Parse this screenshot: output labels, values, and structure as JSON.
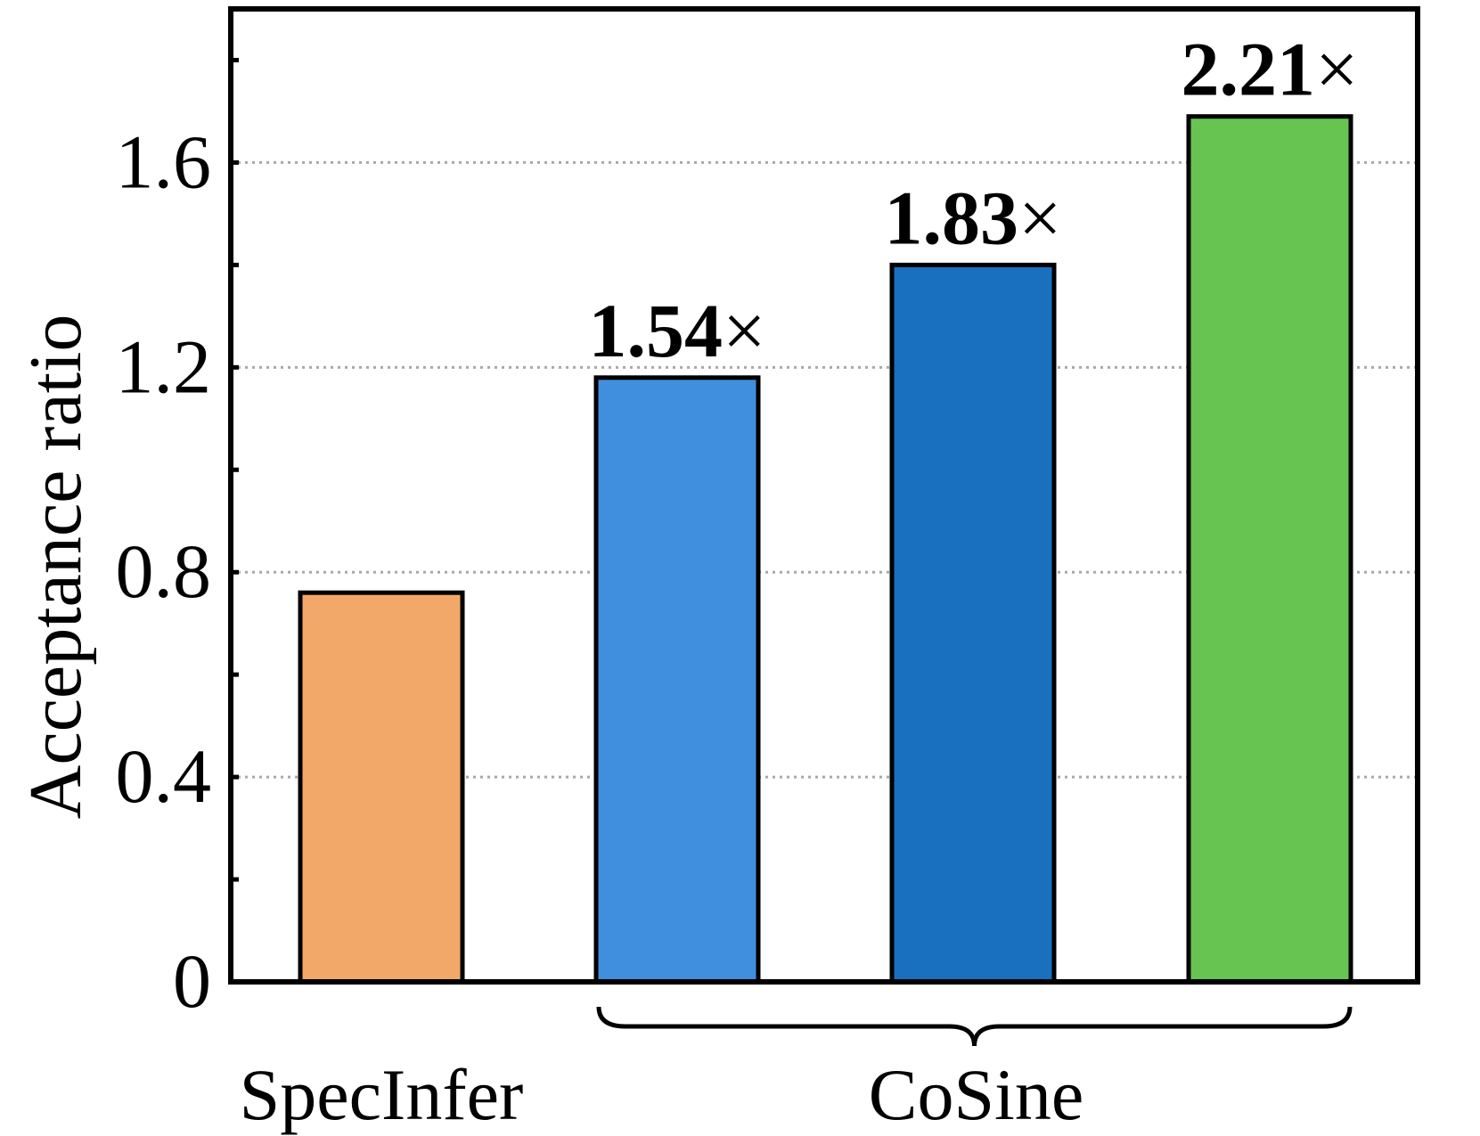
{
  "chart_data": {
    "type": "bar",
    "categories": [
      "SpecInfer",
      "CoSine",
      "CoSine",
      "CoSine"
    ],
    "values": [
      0.76,
      1.18,
      1.4,
      1.69
    ],
    "bar_labels": [
      "",
      "1.54×",
      "1.83×",
      "2.21×"
    ],
    "colors": [
      "#F2A868",
      "#3F8FDE",
      "#1870BF",
      "#67C450"
    ],
    "group_labels": {
      "specinfer": "SpecInfer",
      "cosine": "CoSine"
    },
    "title": "",
    "xlabel": "",
    "ylabel": "Acceptance ratio",
    "ylim": [
      0,
      1.9
    ],
    "yticks": [
      0,
      0.4,
      0.8,
      1.2,
      1.6
    ],
    "ytick_labels": [
      "0",
      "0.4",
      "0.8",
      "1.2",
      "1.6"
    ],
    "grid": "horizontal dotted at major ticks"
  }
}
